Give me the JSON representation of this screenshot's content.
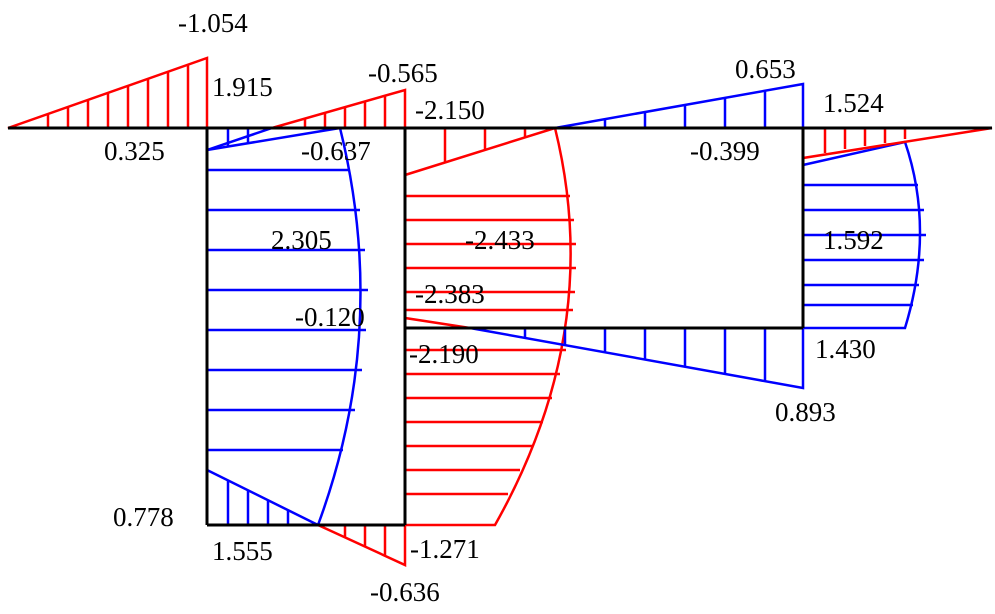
{
  "colors": {
    "positive": "#0000ff",
    "negative": "#ff0000",
    "frame": "#000000"
  },
  "labels": {
    "a": "-1.054",
    "b": "1.915",
    "c": "0.325",
    "d": "-0.565",
    "e": "-0.637",
    "f": "-2.150",
    "g": "0.653",
    "h": "1.524",
    "i": "-0.399",
    "j": "2.305",
    "k": "-2.433",
    "l": "1.592",
    "m": "-2.383",
    "n": "-0.120",
    "o": "-2.190",
    "p": "1.430",
    "q": "0.893",
    "r": "0.778",
    "s": "1.555",
    "t": "-1.271",
    "u": "-0.636"
  }
}
